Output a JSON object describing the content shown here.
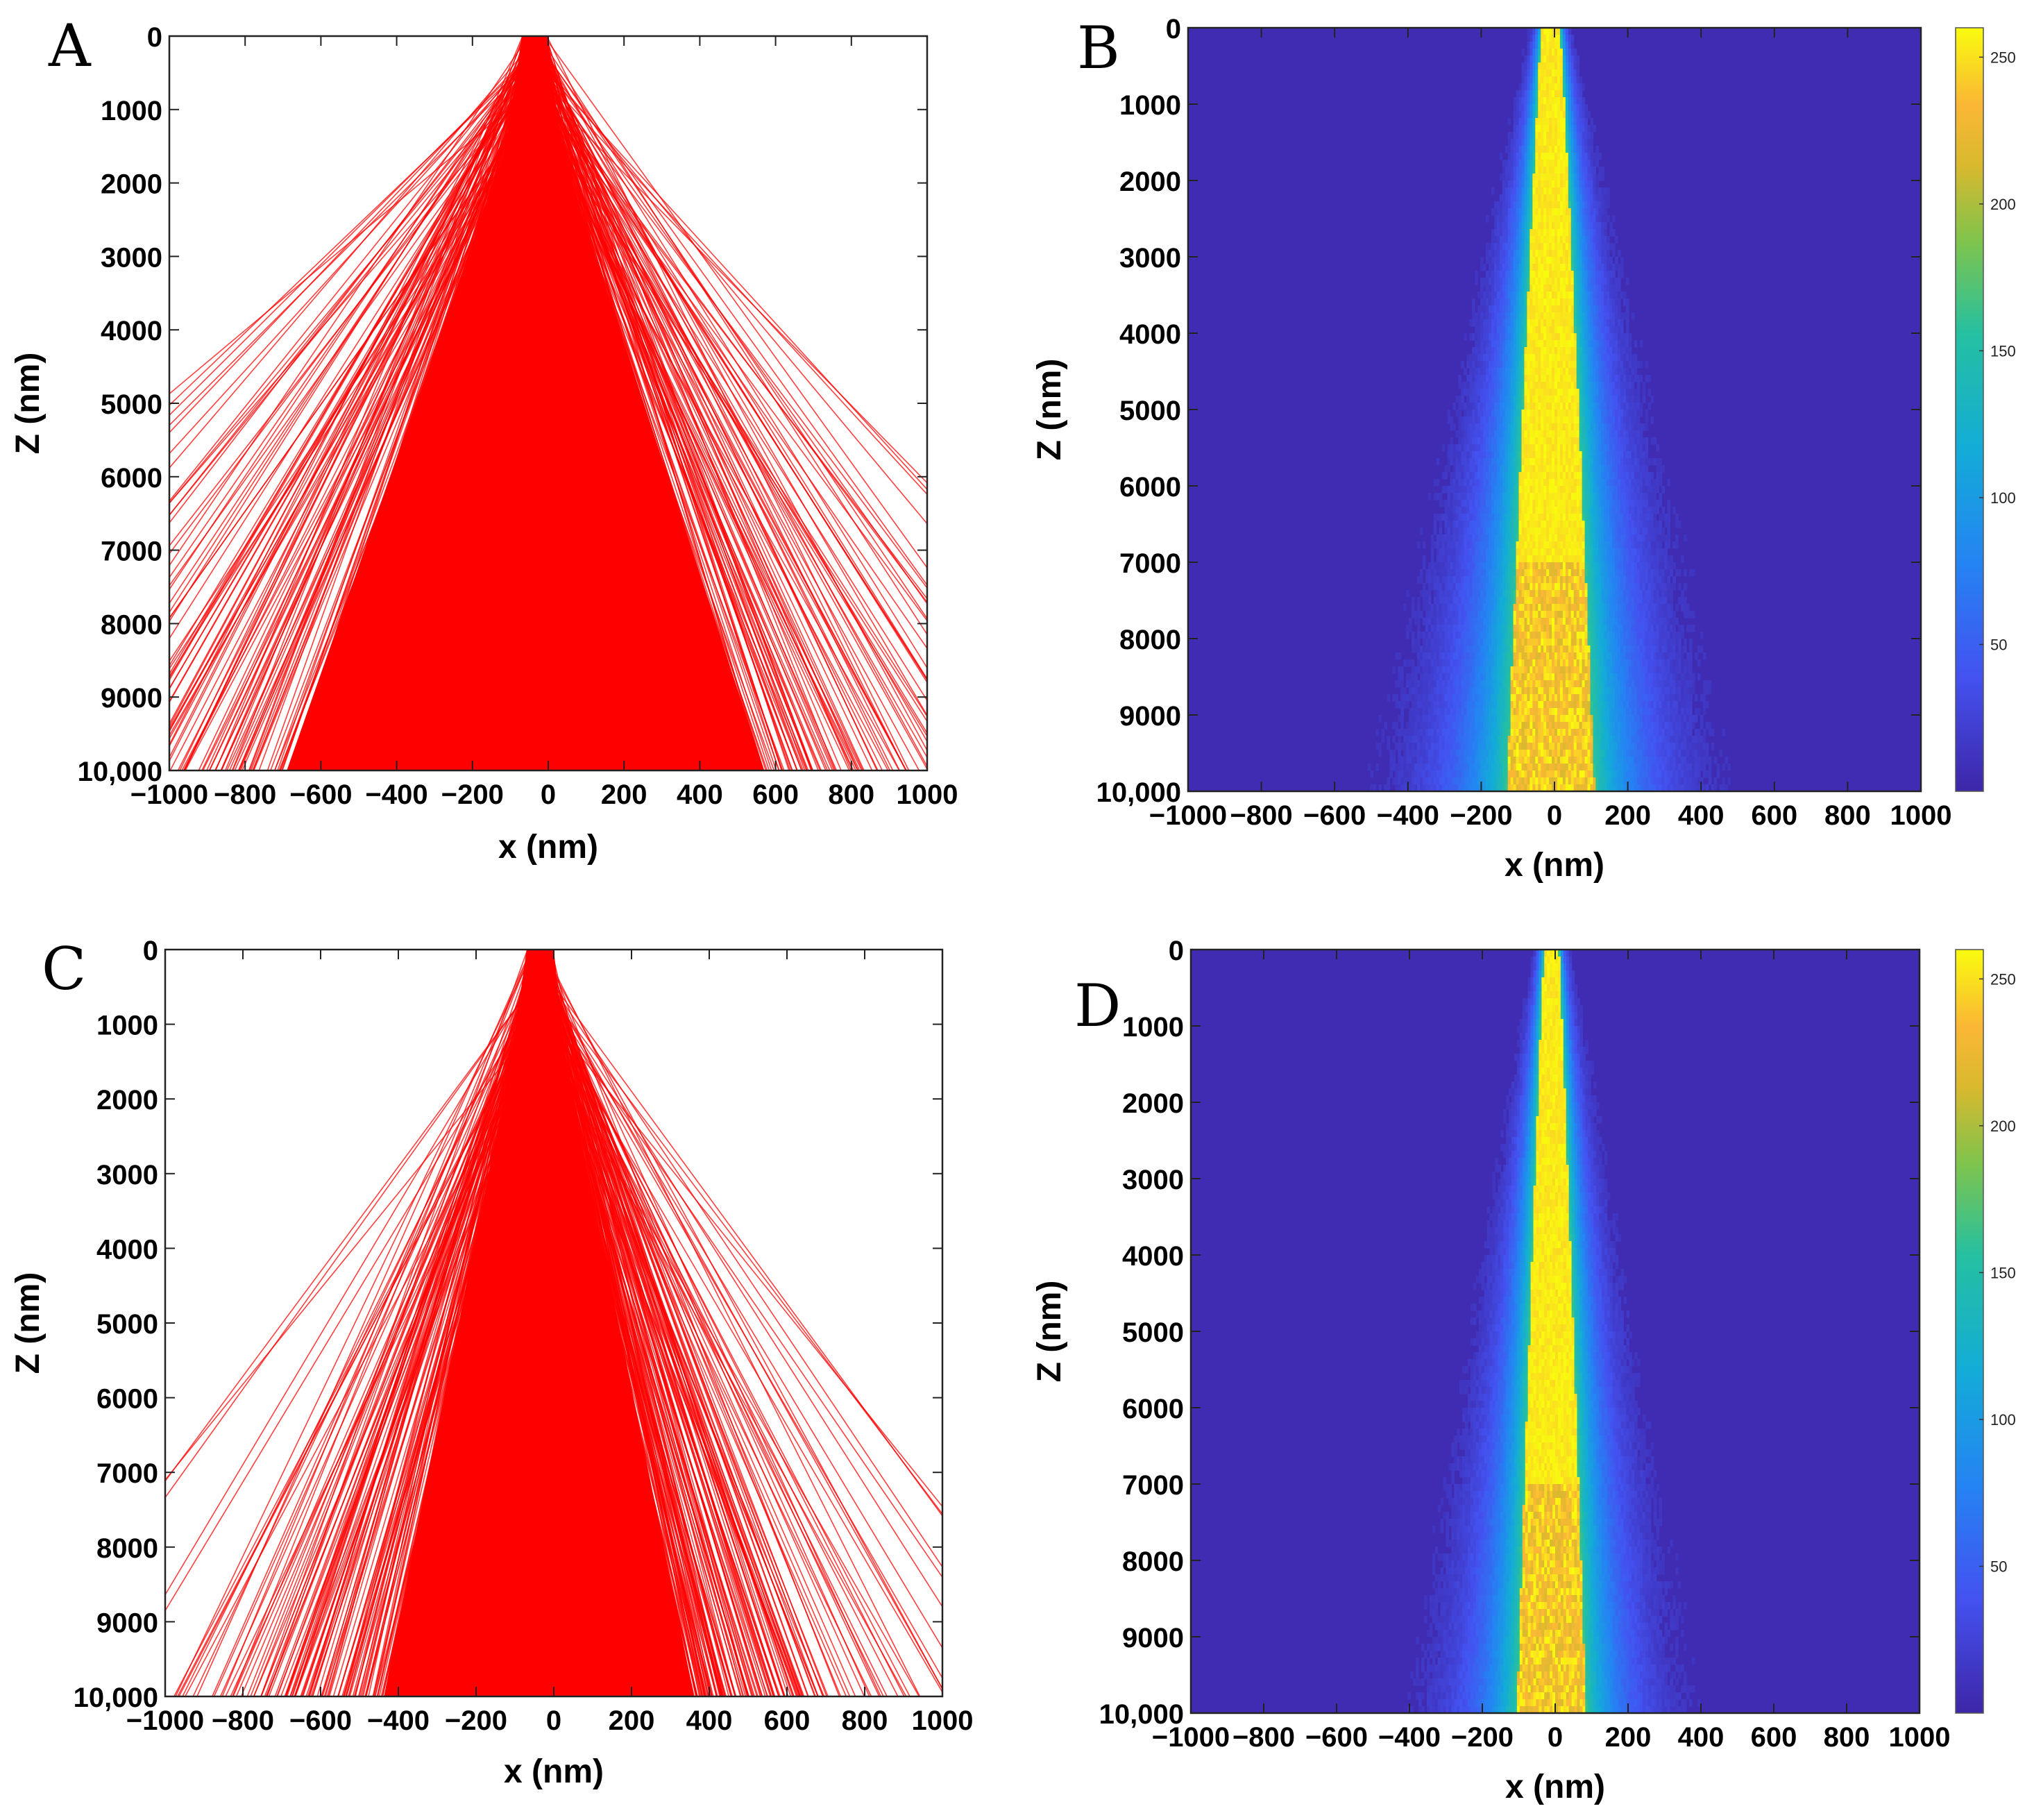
{
  "chart_data": [
    {
      "panel": "A",
      "type": "line",
      "description_kind": "ray_trace",
      "xlabel": "x (nm)",
      "ylabel": "Z (nm)",
      "xlim": [
        -1000,
        1000
      ],
      "ylim": [
        0,
        10000
      ],
      "y_inverted": true,
      "xticks": [
        "−1000",
        "−800",
        "−600",
        "−400",
        "−200",
        "0",
        "200",
        "400",
        "600",
        "800",
        "1000"
      ],
      "yticks": [
        "0",
        "1000",
        "2000",
        "3000",
        "4000",
        "5000",
        "6000",
        "7000",
        "8000",
        "9000",
        "10,000"
      ],
      "ray_color": "#ff0000",
      "source_x_range": [
        -70,
        0
      ],
      "dense_core_halfwidth_at_bottom": 600,
      "spread_scale": 1.0
    },
    {
      "panel": "B",
      "type": "heatmap",
      "xlabel": "x (nm)",
      "ylabel": "Z (nm)",
      "xlim": [
        -1000,
        1000
      ],
      "ylim": [
        0,
        10000
      ],
      "y_inverted": true,
      "xticks": [
        "−1000",
        "−800",
        "−600",
        "−400",
        "−200",
        "0",
        "200",
        "400",
        "600",
        "800",
        "1000"
      ],
      "yticks": [
        "0",
        "1000",
        "2000",
        "3000",
        "4000",
        "5000",
        "6000",
        "7000",
        "8000",
        "9000",
        "10,000"
      ],
      "colorbar": {
        "ticks": [
          "250",
          "200",
          "150",
          "100",
          "50"
        ],
        "range": [
          0,
          260
        ]
      },
      "core_halfwidth_top": 25,
      "core_halfwidth_bottom": 120,
      "halo_halfwidth_bottom": 420
    },
    {
      "panel": "C",
      "type": "line",
      "description_kind": "ray_trace",
      "xlabel": "x (nm)",
      "ylabel": "Z (nm)",
      "xlim": [
        -1000,
        1000
      ],
      "ylim": [
        0,
        10000
      ],
      "y_inverted": true,
      "xticks": [
        "−1000",
        "−800",
        "−600",
        "−400",
        "−200",
        "0",
        "200",
        "400",
        "600",
        "800",
        "1000"
      ],
      "yticks": [
        "0",
        "1000",
        "2000",
        "3000",
        "4000",
        "5000",
        "6000",
        "7000",
        "8000",
        "9000",
        "10,000"
      ],
      "ray_color": "#ff0000",
      "source_x_range": [
        -70,
        0
      ],
      "dense_core_halfwidth_at_bottom": 380,
      "spread_scale": 0.75
    },
    {
      "panel": "D",
      "type": "heatmap",
      "xlabel": "x (nm)",
      "ylabel": "Z (nm)",
      "xlim": [
        -1000,
        1000
      ],
      "ylim": [
        0,
        10000
      ],
      "y_inverted": true,
      "xticks": [
        "−1000",
        "−800",
        "−600",
        "−400",
        "−200",
        "0",
        "200",
        "400",
        "600",
        "800",
        "1000"
      ],
      "yticks": [
        "0",
        "1000",
        "2000",
        "3000",
        "4000",
        "5000",
        "6000",
        "7000",
        "8000",
        "9000",
        "10,000"
      ],
      "colorbar": {
        "ticks": [
          "250",
          "200",
          "150",
          "100",
          "50"
        ],
        "range": [
          0,
          260
        ]
      },
      "core_halfwidth_top": 20,
      "core_halfwidth_bottom": 95,
      "halo_halfwidth_bottom": 340
    }
  ]
}
